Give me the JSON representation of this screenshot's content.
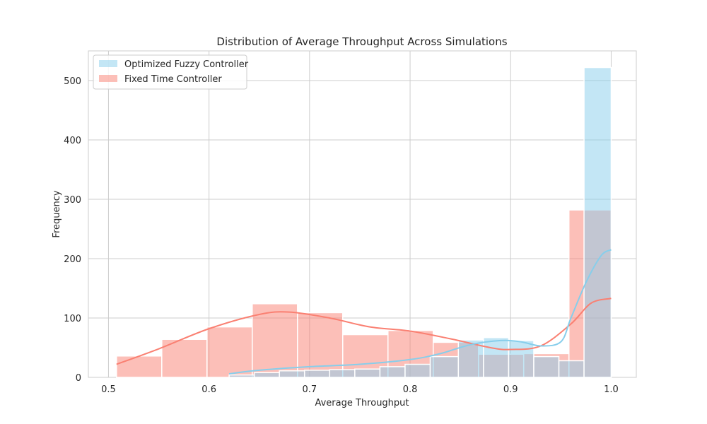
{
  "chart_data": {
    "type": "bar",
    "title": "Distribution of Average Throughput Across Simulations",
    "xlabel": "Average Throughput",
    "ylabel": "Frequency",
    "xlim": [
      0.48,
      1.025
    ],
    "ylim": [
      0,
      550
    ],
    "xticks": [
      "0.5",
      "0.6",
      "0.7",
      "0.8",
      "0.9",
      "1.0"
    ],
    "yticks": [
      "0",
      "100",
      "200",
      "300",
      "400",
      "500"
    ],
    "grid": true,
    "legend_position": "upper-left",
    "series": [
      {
        "name": "Fixed Time Controller",
        "color": "#fa8072",
        "bins": [
          {
            "x0": 0.508,
            "x1": 0.553,
            "count": 36
          },
          {
            "x0": 0.553,
            "x1": 0.598,
            "count": 64
          },
          {
            "x0": 0.598,
            "x1": 0.643,
            "count": 85
          },
          {
            "x0": 0.643,
            "x1": 0.688,
            "count": 124
          },
          {
            "x0": 0.688,
            "x1": 0.733,
            "count": 109
          },
          {
            "x0": 0.733,
            "x1": 0.778,
            "count": 72
          },
          {
            "x0": 0.778,
            "x1": 0.823,
            "count": 79
          },
          {
            "x0": 0.823,
            "x1": 0.868,
            "count": 59
          },
          {
            "x0": 0.868,
            "x1": 0.913,
            "count": 39
          },
          {
            "x0": 0.913,
            "x1": 0.958,
            "count": 40
          },
          {
            "x0": 0.958,
            "x1": 1.0,
            "count": 282
          }
        ],
        "kde": [
          [
            0.508,
            22
          ],
          [
            0.55,
            48
          ],
          [
            0.6,
            82
          ],
          [
            0.65,
            106
          ],
          [
            0.68,
            110
          ],
          [
            0.72,
            100
          ],
          [
            0.76,
            85
          ],
          [
            0.8,
            78
          ],
          [
            0.84,
            65
          ],
          [
            0.88,
            50
          ],
          [
            0.9,
            47
          ],
          [
            0.93,
            53
          ],
          [
            0.96,
            90
          ],
          [
            0.98,
            125
          ],
          [
            1.0,
            133
          ]
        ]
      },
      {
        "name": "Optimized Fuzzy Controller",
        "color": "#87ceeb",
        "bins": [
          {
            "x0": 0.62,
            "x1": 0.645,
            "count": 4
          },
          {
            "x0": 0.645,
            "x1": 0.67,
            "count": 8
          },
          {
            "x0": 0.67,
            "x1": 0.695,
            "count": 11
          },
          {
            "x0": 0.695,
            "x1": 0.72,
            "count": 12
          },
          {
            "x0": 0.72,
            "x1": 0.745,
            "count": 13
          },
          {
            "x0": 0.745,
            "x1": 0.77,
            "count": 14
          },
          {
            "x0": 0.77,
            "x1": 0.795,
            "count": 18
          },
          {
            "x0": 0.795,
            "x1": 0.82,
            "count": 22
          },
          {
            "x0": 0.82,
            "x1": 0.848,
            "count": 35
          },
          {
            "x0": 0.848,
            "x1": 0.873,
            "count": 63
          },
          {
            "x0": 0.873,
            "x1": 0.898,
            "count": 67
          },
          {
            "x0": 0.898,
            "x1": 0.923,
            "count": 62
          },
          {
            "x0": 0.923,
            "x1": 0.948,
            "count": 35
          },
          {
            "x0": 0.948,
            "x1": 0.973,
            "count": 28
          },
          {
            "x0": 0.973,
            "x1": 1.0,
            "count": 522
          }
        ],
        "kde": [
          [
            0.62,
            6
          ],
          [
            0.65,
            12
          ],
          [
            0.7,
            18
          ],
          [
            0.75,
            22
          ],
          [
            0.8,
            30
          ],
          [
            0.83,
            40
          ],
          [
            0.86,
            55
          ],
          [
            0.89,
            62
          ],
          [
            0.91,
            60
          ],
          [
            0.93,
            53
          ],
          [
            0.95,
            60
          ],
          [
            0.96,
            100
          ],
          [
            0.975,
            160
          ],
          [
            0.99,
            205
          ],
          [
            1.0,
            215
          ]
        ]
      }
    ]
  }
}
